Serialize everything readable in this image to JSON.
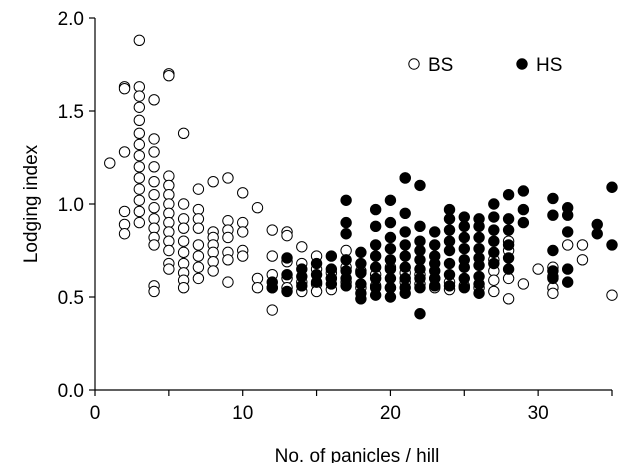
{
  "chart_data": {
    "type": "scatter",
    "title": "",
    "xlabel": "No. of panicles / hill",
    "ylabel": "Lodging index",
    "xlim": [
      0,
      35
    ],
    "ylim": [
      0.0,
      2.0
    ],
    "x_ticks": [
      "0",
      "10",
      "20",
      "30"
    ],
    "y_ticks": [
      "0.0",
      "0.5",
      "1.0",
      "1.5",
      "2.0"
    ],
    "grid": false,
    "legend_position": "top-right",
    "series": [
      {
        "name": "BS",
        "marker": "open-circle",
        "color": "#ffffff",
        "points": [
          [
            1,
            1.22
          ],
          [
            2,
            1.63
          ],
          [
            2,
            1.62
          ],
          [
            2,
            1.28
          ],
          [
            2,
            0.96
          ],
          [
            2,
            0.89
          ],
          [
            2,
            0.84
          ],
          [
            3,
            1.88
          ],
          [
            3,
            1.63
          ],
          [
            3,
            1.58
          ],
          [
            3,
            1.52
          ],
          [
            3,
            1.45
          ],
          [
            3,
            1.38
          ],
          [
            3,
            1.32
          ],
          [
            3,
            1.26
          ],
          [
            3,
            1.2
          ],
          [
            3,
            1.14
          ],
          [
            3,
            1.08
          ],
          [
            3,
            1.02
          ],
          [
            3,
            0.96
          ],
          [
            3,
            0.9
          ],
          [
            4,
            1.56
          ],
          [
            4,
            1.35
          ],
          [
            4,
            1.28
          ],
          [
            4,
            1.2
          ],
          [
            4,
            1.12
          ],
          [
            4,
            1.05
          ],
          [
            4,
            0.98
          ],
          [
            4,
            0.92
          ],
          [
            4,
            0.87
          ],
          [
            4,
            0.82
          ],
          [
            4,
            0.78
          ],
          [
            4,
            0.56
          ],
          [
            4,
            0.53
          ],
          [
            5,
            1.7
          ],
          [
            5,
            1.69
          ],
          [
            5,
            1.15
          ],
          [
            5,
            1.1
          ],
          [
            5,
            1.05
          ],
          [
            5,
            1.0
          ],
          [
            5,
            0.95
          ],
          [
            5,
            0.9
          ],
          [
            5,
            0.85
          ],
          [
            5,
            0.8
          ],
          [
            5,
            0.75
          ],
          [
            5,
            0.68
          ],
          [
            5,
            0.65
          ],
          [
            6,
            1.38
          ],
          [
            6,
            1.0
          ],
          [
            6,
            0.92
          ],
          [
            6,
            0.87
          ],
          [
            6,
            0.8
          ],
          [
            6,
            0.74
          ],
          [
            6,
            0.68
          ],
          [
            6,
            0.63
          ],
          [
            6,
            0.59
          ],
          [
            6,
            0.55
          ],
          [
            7,
            1.08
          ],
          [
            7,
            0.97
          ],
          [
            7,
            0.92
          ],
          [
            7,
            0.87
          ],
          [
            7,
            0.78
          ],
          [
            7,
            0.72
          ],
          [
            7,
            0.66
          ],
          [
            7,
            0.6
          ],
          [
            8,
            1.12
          ],
          [
            8,
            0.85
          ],
          [
            8,
            0.82
          ],
          [
            8,
            0.78
          ],
          [
            8,
            0.74
          ],
          [
            8,
            0.69
          ],
          [
            8,
            0.64
          ],
          [
            9,
            1.14
          ],
          [
            9,
            0.91
          ],
          [
            9,
            0.86
          ],
          [
            9,
            0.82
          ],
          [
            9,
            0.74
          ],
          [
            9,
            0.7
          ],
          [
            9,
            0.58
          ],
          [
            10,
            1.06
          ],
          [
            10,
            0.9
          ],
          [
            10,
            0.85
          ],
          [
            10,
            0.75
          ],
          [
            10,
            0.72
          ],
          [
            11,
            0.98
          ],
          [
            11,
            0.6
          ],
          [
            11,
            0.55
          ],
          [
            12,
            0.86
          ],
          [
            12,
            0.72
          ],
          [
            12,
            0.62
          ],
          [
            12,
            0.55
          ],
          [
            12,
            0.43
          ],
          [
            13,
            0.85
          ],
          [
            13,
            0.83
          ],
          [
            13,
            0.69
          ],
          [
            13,
            0.6
          ],
          [
            13,
            0.55
          ],
          [
            14,
            0.77
          ],
          [
            14,
            0.68
          ],
          [
            14,
            0.58
          ],
          [
            14,
            0.53
          ],
          [
            15,
            0.72
          ],
          [
            15,
            0.65
          ],
          [
            15,
            0.57
          ],
          [
            15,
            0.53
          ],
          [
            16,
            0.63
          ],
          [
            16,
            0.6
          ],
          [
            16,
            0.54
          ],
          [
            17,
            0.75
          ],
          [
            17,
            0.66
          ],
          [
            17,
            0.58
          ],
          [
            18,
            0.64
          ],
          [
            18,
            0.55
          ],
          [
            19,
            0.62
          ],
          [
            19,
            0.56
          ],
          [
            20,
            0.66
          ],
          [
            20,
            0.55
          ],
          [
            21,
            0.63
          ],
          [
            21,
            0.58
          ],
          [
            22,
            0.62
          ],
          [
            22,
            0.57
          ],
          [
            23,
            0.6
          ],
          [
            23,
            0.55
          ],
          [
            24,
            0.58
          ],
          [
            24,
            0.54
          ],
          [
            25,
            0.56
          ],
          [
            26,
            0.55
          ],
          [
            27,
            0.7
          ],
          [
            27,
            0.64
          ],
          [
            27,
            0.59
          ],
          [
            27,
            0.53
          ],
          [
            28,
            0.8
          ],
          [
            28,
            0.75
          ],
          [
            28,
            0.6
          ],
          [
            28,
            0.49
          ],
          [
            29,
            0.57
          ],
          [
            30,
            0.65
          ],
          [
            31,
            0.66
          ],
          [
            31,
            0.61
          ],
          [
            31,
            0.55
          ],
          [
            31,
            0.52
          ],
          [
            32,
            0.78
          ],
          [
            33,
            0.78
          ],
          [
            33,
            0.7
          ],
          [
            35,
            0.51
          ]
        ]
      },
      {
        "name": "HS",
        "marker": "filled-circle",
        "color": "#000000",
        "points": [
          [
            12,
            0.58
          ],
          [
            12,
            0.55
          ],
          [
            13,
            0.71
          ],
          [
            13,
            0.62
          ],
          [
            13,
            0.53
          ],
          [
            14,
            0.65
          ],
          [
            14,
            0.61
          ],
          [
            14,
            0.56
          ],
          [
            15,
            0.68
          ],
          [
            15,
            0.62
          ],
          [
            15,
            0.58
          ],
          [
            16,
            0.72
          ],
          [
            16,
            0.65
          ],
          [
            16,
            0.6
          ],
          [
            16,
            0.57
          ],
          [
            17,
            1.02
          ],
          [
            17,
            0.9
          ],
          [
            17,
            0.84
          ],
          [
            17,
            0.7
          ],
          [
            17,
            0.64
          ],
          [
            17,
            0.6
          ],
          [
            17,
            0.56
          ],
          [
            18,
            0.74
          ],
          [
            18,
            0.68
          ],
          [
            18,
            0.63
          ],
          [
            18,
            0.57
          ],
          [
            18,
            0.52
          ],
          [
            18,
            0.49
          ],
          [
            19,
            0.97
          ],
          [
            19,
            0.88
          ],
          [
            19,
            0.78
          ],
          [
            19,
            0.72
          ],
          [
            19,
            0.66
          ],
          [
            19,
            0.6
          ],
          [
            19,
            0.55
          ],
          [
            19,
            0.51
          ],
          [
            20,
            1.02
          ],
          [
            20,
            0.9
          ],
          [
            20,
            0.82
          ],
          [
            20,
            0.76
          ],
          [
            20,
            0.7
          ],
          [
            20,
            0.65
          ],
          [
            20,
            0.6
          ],
          [
            20,
            0.55
          ],
          [
            20,
            0.5
          ],
          [
            21,
            1.14
          ],
          [
            21,
            1.14
          ],
          [
            21,
            0.95
          ],
          [
            21,
            0.85
          ],
          [
            21,
            0.78
          ],
          [
            21,
            0.72
          ],
          [
            21,
            0.66
          ],
          [
            21,
            0.6
          ],
          [
            21,
            0.55
          ],
          [
            21,
            0.52
          ],
          [
            22,
            1.1
          ],
          [
            22,
            0.88
          ],
          [
            22,
            0.8
          ],
          [
            22,
            0.75
          ],
          [
            22,
            0.7
          ],
          [
            22,
            0.65
          ],
          [
            22,
            0.6
          ],
          [
            22,
            0.55
          ],
          [
            22,
            0.41
          ],
          [
            23,
            0.85
          ],
          [
            23,
            0.78
          ],
          [
            23,
            0.72
          ],
          [
            23,
            0.68
          ],
          [
            23,
            0.64
          ],
          [
            23,
            0.6
          ],
          [
            23,
            0.56
          ],
          [
            24,
            0.97
          ],
          [
            24,
            0.92
          ],
          [
            24,
            0.86
          ],
          [
            24,
            0.8
          ],
          [
            24,
            0.75
          ],
          [
            24,
            0.68
          ],
          [
            24,
            0.62
          ],
          [
            24,
            0.56
          ],
          [
            25,
            0.93
          ],
          [
            25,
            0.88
          ],
          [
            25,
            0.82
          ],
          [
            25,
            0.76
          ],
          [
            25,
            0.7
          ],
          [
            25,
            0.66
          ],
          [
            25,
            0.6
          ],
          [
            25,
            0.55
          ],
          [
            26,
            0.92
          ],
          [
            26,
            0.88
          ],
          [
            26,
            0.82
          ],
          [
            26,
            0.76
          ],
          [
            26,
            0.71
          ],
          [
            26,
            0.67
          ],
          [
            26,
            0.61
          ],
          [
            26,
            0.57
          ],
          [
            26,
            0.52
          ],
          [
            27,
            1.0
          ],
          [
            27,
            0.93
          ],
          [
            27,
            0.86
          ],
          [
            27,
            0.8
          ],
          [
            27,
            0.74
          ],
          [
            27,
            0.68
          ],
          [
            28,
            1.05
          ],
          [
            28,
            0.92
          ],
          [
            28,
            0.86
          ],
          [
            28,
            0.78
          ],
          [
            28,
            0.71
          ],
          [
            28,
            0.65
          ],
          [
            29,
            1.07
          ],
          [
            29,
            0.97
          ],
          [
            29,
            0.9
          ],
          [
            31,
            1.03
          ],
          [
            31,
            0.94
          ],
          [
            31,
            0.75
          ],
          [
            31,
            0.64
          ],
          [
            31,
            0.6
          ],
          [
            32,
            0.98
          ],
          [
            32,
            0.94
          ],
          [
            32,
            0.85
          ],
          [
            32,
            0.65
          ],
          [
            32,
            0.58
          ],
          [
            34,
            0.89
          ],
          [
            34,
            0.84
          ],
          [
            35,
            1.09
          ],
          [
            35,
            0.78
          ]
        ]
      }
    ]
  }
}
